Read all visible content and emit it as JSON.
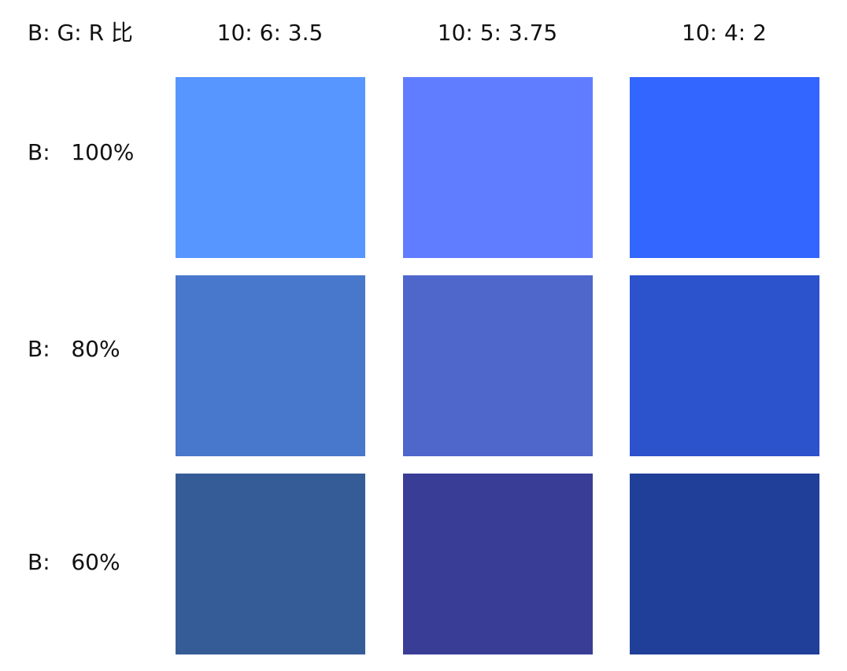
{
  "header": {
    "corner_label": "B: G: R 比"
  },
  "columns": [
    "10: 6: 3.5",
    "10: 5: 3.75",
    "10: 4: 2"
  ],
  "rows": [
    {
      "label": "B:   100%",
      "colors": [
        "#5896ff",
        "#617dff",
        "#3366ff"
      ]
    },
    {
      "label": "B:   80%",
      "colors": [
        "#4878cb",
        "#4f66cb",
        "#2c52cc"
      ]
    },
    {
      "label": "B:   60%",
      "colors": [
        "#365c98",
        "#3a3d96",
        "#203f98"
      ]
    }
  ]
}
